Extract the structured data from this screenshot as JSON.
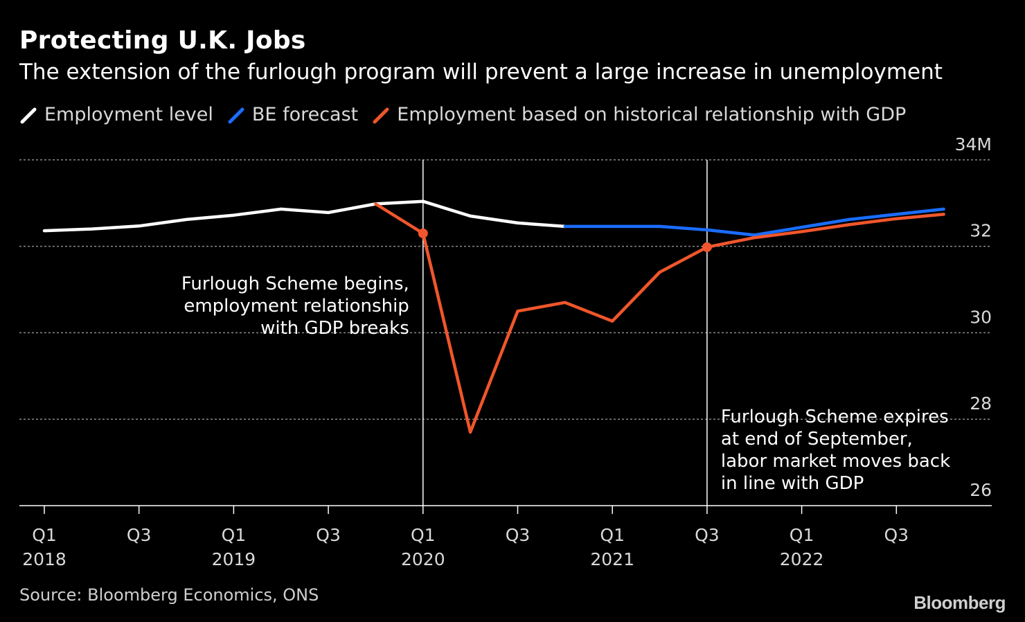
{
  "title": "Protecting U.K. Jobs",
  "subtitle": "The extension of the furlough program will prevent a large increase in unemployment",
  "source": "Source: Bloomberg Economics, ONS",
  "brand": "Bloomberg",
  "chart_data": {
    "type": "line",
    "y_unit_label": "34M",
    "ylim": [
      26,
      34
    ],
    "yticks": [
      26,
      28,
      30,
      32,
      34
    ],
    "ytick_labels": [
      "26",
      "28",
      "30",
      "32",
      "34M"
    ],
    "grid": true,
    "legend_position": "top-left",
    "x": [
      "2018 Q1",
      "2018 Q2",
      "2018 Q3",
      "2018 Q4",
      "2019 Q1",
      "2019 Q2",
      "2019 Q3",
      "2019 Q4",
      "2020 Q1",
      "2020 Q2",
      "2020 Q3",
      "2020 Q4",
      "2021 Q1",
      "2021 Q2",
      "2021 Q3",
      "2021 Q4",
      "2022 Q1",
      "2022 Q2",
      "2022 Q3",
      "2022 Q4"
    ],
    "xticks": [
      {
        "index": 0,
        "q": "Q1",
        "year": "2018"
      },
      {
        "index": 2,
        "q": "Q3",
        "year": ""
      },
      {
        "index": 4,
        "q": "Q1",
        "year": "2019"
      },
      {
        "index": 6,
        "q": "Q3",
        "year": ""
      },
      {
        "index": 8,
        "q": "Q1",
        "year": "2020"
      },
      {
        "index": 10,
        "q": "Q3",
        "year": ""
      },
      {
        "index": 12,
        "q": "Q1",
        "year": "2021"
      },
      {
        "index": 14,
        "q": "Q3",
        "year": ""
      },
      {
        "index": 16,
        "q": "Q1",
        "year": "2022"
      },
      {
        "index": 18,
        "q": "Q3",
        "year": ""
      }
    ],
    "series": [
      {
        "name": "Employment level",
        "color": "#ffffff",
        "points": [
          [
            0,
            32.36
          ],
          [
            1,
            32.4
          ],
          [
            2,
            32.47
          ],
          [
            3,
            32.62
          ],
          [
            4,
            32.72
          ],
          [
            5,
            32.86
          ],
          [
            6,
            32.78
          ],
          [
            7,
            32.98
          ],
          [
            8,
            33.04
          ],
          [
            9,
            32.7
          ],
          [
            10,
            32.54
          ],
          [
            11,
            32.46
          ]
        ]
      },
      {
        "name": "BE forecast",
        "color": "#1a6dff",
        "points": [
          [
            11,
            32.46
          ],
          [
            12,
            32.46
          ],
          [
            13,
            32.46
          ],
          [
            14,
            32.38
          ],
          [
            15,
            32.26
          ],
          [
            16,
            32.44
          ],
          [
            17,
            32.62
          ],
          [
            18,
            32.74
          ],
          [
            19,
            32.86
          ]
        ]
      },
      {
        "name": "Employment based on historical relationship with GDP",
        "color": "#f0562b",
        "points": [
          [
            7,
            32.98
          ],
          [
            8,
            32.3
          ],
          [
            9,
            27.7
          ],
          [
            10,
            30.5
          ],
          [
            11,
            30.7
          ],
          [
            12,
            30.27
          ],
          [
            13,
            31.4
          ],
          [
            14,
            31.98
          ],
          [
            15,
            32.2
          ],
          [
            16,
            32.34
          ],
          [
            17,
            32.5
          ],
          [
            18,
            32.64
          ],
          [
            19,
            32.74
          ]
        ],
        "markers": [
          8,
          14
        ]
      }
    ],
    "annotations": [
      {
        "id": "begins",
        "x_index": 8,
        "lines": [
          "Furlough Scheme begins,",
          "employment relationship",
          "with GDP breaks"
        ]
      },
      {
        "id": "expires",
        "x_index": 14,
        "lines": [
          "Furlough Scheme expires",
          "at end of September,",
          "labor market moves back",
          "in line with GDP"
        ]
      }
    ]
  }
}
